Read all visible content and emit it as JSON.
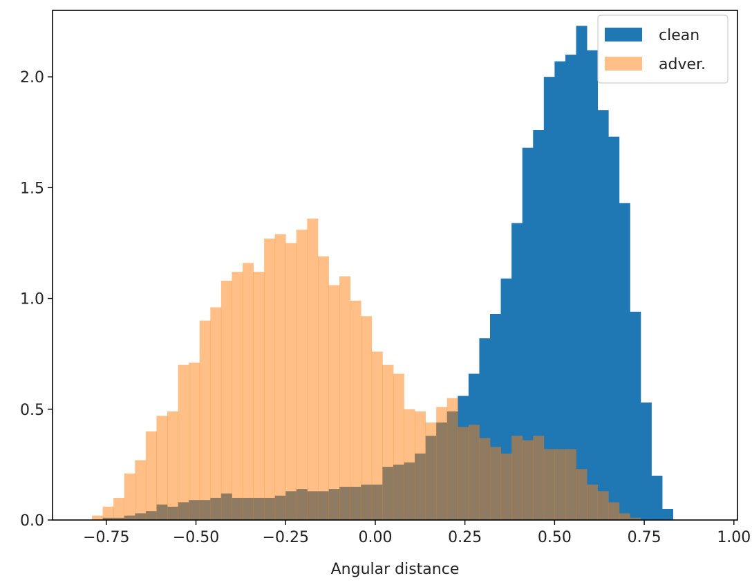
{
  "chart_data": {
    "type": "histogram",
    "title": "",
    "xlabel": "Angular distance",
    "ylabel": "",
    "xlim": [
      -0.9,
      1.01
    ],
    "ylim": [
      0,
      2.3
    ],
    "x_ticks": [
      -0.75,
      -0.5,
      -0.25,
      0.0,
      0.25,
      0.5,
      0.75,
      1.0
    ],
    "x_tick_labels": [
      "−0.75",
      "−0.50",
      "−0.25",
      "0.00",
      "0.25",
      "0.50",
      "0.75",
      "1.00"
    ],
    "y_ticks": [
      0.0,
      0.5,
      1.0,
      1.5,
      2.0
    ],
    "y_tick_labels": [
      "0.0",
      "0.5",
      "1.0",
      "1.5",
      "2.0"
    ],
    "grid": false,
    "legend_position": "top-right",
    "series": [
      {
        "name": "clean",
        "color": "#1f77b4",
        "opacity": 1.0,
        "bins": [
          [
            -0.79,
            -0.76,
            0.0
          ],
          [
            -0.76,
            -0.73,
            0.01
          ],
          [
            -0.73,
            -0.7,
            0.01
          ],
          [
            -0.7,
            -0.67,
            0.02
          ],
          [
            -0.67,
            -0.64,
            0.03
          ],
          [
            -0.64,
            -0.61,
            0.04
          ],
          [
            -0.61,
            -0.58,
            0.07
          ],
          [
            -0.58,
            -0.55,
            0.06
          ],
          [
            -0.55,
            -0.52,
            0.08
          ],
          [
            -0.52,
            -0.49,
            0.09
          ],
          [
            -0.49,
            -0.46,
            0.09
          ],
          [
            -0.46,
            -0.43,
            0.1
          ],
          [
            -0.43,
            -0.4,
            0.12
          ],
          [
            -0.4,
            -0.37,
            0.1
          ],
          [
            -0.37,
            -0.34,
            0.1
          ],
          [
            -0.34,
            -0.31,
            0.1
          ],
          [
            -0.31,
            -0.28,
            0.1
          ],
          [
            -0.28,
            -0.25,
            0.11
          ],
          [
            -0.25,
            -0.22,
            0.13
          ],
          [
            -0.22,
            -0.19,
            0.14
          ],
          [
            -0.19,
            -0.16,
            0.13
          ],
          [
            -0.16,
            -0.13,
            0.13
          ],
          [
            -0.13,
            -0.1,
            0.14
          ],
          [
            -0.1,
            -0.07,
            0.15
          ],
          [
            -0.07,
            -0.04,
            0.15
          ],
          [
            -0.04,
            -0.01,
            0.16
          ],
          [
            -0.01,
            0.02,
            0.16
          ],
          [
            0.02,
            0.05,
            0.24
          ],
          [
            0.05,
            0.08,
            0.25
          ],
          [
            0.08,
            0.11,
            0.26
          ],
          [
            0.11,
            0.14,
            0.3
          ],
          [
            0.14,
            0.17,
            0.38
          ],
          [
            0.17,
            0.2,
            0.44
          ],
          [
            0.2,
            0.23,
            0.49
          ],
          [
            0.23,
            0.26,
            0.56
          ],
          [
            0.26,
            0.29,
            0.66
          ],
          [
            0.29,
            0.32,
            0.82
          ],
          [
            0.32,
            0.35,
            0.93
          ],
          [
            0.35,
            0.38,
            1.09
          ],
          [
            0.38,
            0.41,
            1.34
          ],
          [
            0.41,
            0.44,
            1.68
          ],
          [
            0.44,
            0.47,
            1.76
          ],
          [
            0.47,
            0.5,
            2.0
          ],
          [
            0.5,
            0.53,
            2.07
          ],
          [
            0.53,
            0.56,
            2.1
          ],
          [
            0.56,
            0.59,
            2.23
          ],
          [
            0.59,
            0.62,
            2.12
          ],
          [
            0.62,
            0.65,
            1.85
          ],
          [
            0.65,
            0.68,
            1.73
          ],
          [
            0.68,
            0.71,
            1.43
          ],
          [
            0.71,
            0.74,
            0.94
          ],
          [
            0.74,
            0.77,
            0.53
          ],
          [
            0.77,
            0.8,
            0.2
          ],
          [
            0.8,
            0.83,
            0.05
          ]
        ]
      },
      {
        "name": "adver.",
        "color": "#ff7f0e",
        "opacity": 0.5,
        "bins": [
          [
            -0.79,
            -0.76,
            0.02
          ],
          [
            -0.76,
            -0.73,
            0.06
          ],
          [
            -0.73,
            -0.7,
            0.1
          ],
          [
            -0.7,
            -0.67,
            0.21
          ],
          [
            -0.67,
            -0.64,
            0.27
          ],
          [
            -0.64,
            -0.61,
            0.4
          ],
          [
            -0.61,
            -0.58,
            0.47
          ],
          [
            -0.58,
            -0.55,
            0.49
          ],
          [
            -0.55,
            -0.52,
            0.7
          ],
          [
            -0.52,
            -0.49,
            0.71
          ],
          [
            -0.49,
            -0.46,
            0.9
          ],
          [
            -0.46,
            -0.43,
            0.96
          ],
          [
            -0.43,
            -0.4,
            1.08
          ],
          [
            -0.4,
            -0.37,
            1.12
          ],
          [
            -0.37,
            -0.34,
            1.16
          ],
          [
            -0.34,
            -0.31,
            1.12
          ],
          [
            -0.31,
            -0.28,
            1.27
          ],
          [
            -0.28,
            -0.25,
            1.29
          ],
          [
            -0.25,
            -0.22,
            1.25
          ],
          [
            -0.22,
            -0.19,
            1.31
          ],
          [
            -0.19,
            -0.16,
            1.36
          ],
          [
            -0.16,
            -0.13,
            1.19
          ],
          [
            -0.13,
            -0.1,
            1.06
          ],
          [
            -0.1,
            -0.07,
            1.1
          ],
          [
            -0.07,
            -0.04,
            0.99
          ],
          [
            -0.04,
            -0.01,
            0.92
          ],
          [
            -0.01,
            0.02,
            0.76
          ],
          [
            0.02,
            0.05,
            0.7
          ],
          [
            0.05,
            0.08,
            0.66
          ],
          [
            0.08,
            0.11,
            0.5
          ],
          [
            0.11,
            0.14,
            0.49
          ],
          [
            0.14,
            0.17,
            0.44
          ],
          [
            0.17,
            0.2,
            0.51
          ],
          [
            0.2,
            0.23,
            0.55
          ],
          [
            0.23,
            0.26,
            0.42
          ],
          [
            0.26,
            0.29,
            0.43
          ],
          [
            0.29,
            0.32,
            0.37
          ],
          [
            0.32,
            0.35,
            0.33
          ],
          [
            0.35,
            0.38,
            0.3
          ],
          [
            0.38,
            0.41,
            0.38
          ],
          [
            0.41,
            0.44,
            0.36
          ],
          [
            0.44,
            0.47,
            0.38
          ],
          [
            0.47,
            0.5,
            0.32
          ],
          [
            0.5,
            0.53,
            0.32
          ],
          [
            0.53,
            0.56,
            0.32
          ],
          [
            0.56,
            0.59,
            0.23
          ],
          [
            0.59,
            0.62,
            0.16
          ],
          [
            0.62,
            0.65,
            0.13
          ],
          [
            0.65,
            0.68,
            0.08
          ],
          [
            0.68,
            0.71,
            0.03
          ],
          [
            0.71,
            0.74,
            0.01
          ]
        ]
      }
    ]
  }
}
